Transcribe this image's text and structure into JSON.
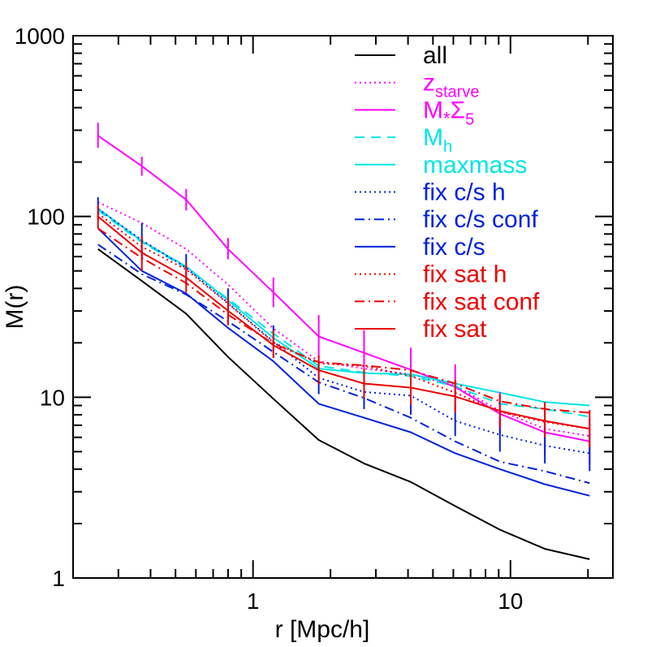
{
  "chart_data": {
    "type": "line",
    "xlabel": "r [Mpc/h]",
    "ylabel": "M(r)",
    "xscale": "log",
    "yscale": "log",
    "xlim": [
      0.2,
      25
    ],
    "ylim": [
      1,
      1000
    ],
    "x_ticks": [
      1,
      10
    ],
    "y_ticks": [
      1,
      10,
      100,
      1000
    ],
    "x": [
      0.25,
      0.37,
      0.55,
      0.8,
      1.2,
      1.8,
      2.7,
      4.1,
      6.1,
      9.1,
      13.6,
      20.3
    ],
    "legend_position": "top-right",
    "series": [
      {
        "name": "all",
        "color": "#000000",
        "dash": "solid",
        "values": [
          66,
          44,
          29,
          16.7,
          9.8,
          5.8,
          4.3,
          3.4,
          2.5,
          1.85,
          1.45,
          1.27
        ]
      },
      {
        "name": "z_starve",
        "label_main": "z",
        "label_sub": "starve",
        "color": "#ff00ff",
        "dash": "dot",
        "values": [
          120,
          92,
          66,
          42,
          24,
          15.8,
          14.4,
          13.4,
          11.6,
          8.4,
          6.7,
          6.1
        ]
      },
      {
        "name": "M*Σ5",
        "label_main": "M",
        "label_star": "*",
        "label_sigma": "Σ",
        "label_sub": "5",
        "color": "#ff00ff",
        "dash": "solid",
        "values": [
          280,
          190,
          124,
          66,
          38,
          21.7,
          17.6,
          14.2,
          11.4,
          8.1,
          6.4,
          5.7
        ]
      },
      {
        "name": "Ṁh",
        "label_main": "M",
        "label_sub": "h",
        "color": "#00e5e5",
        "dash": "dash",
        "values": [
          108,
          72,
          52,
          35,
          22.5,
          14.9,
          13.7,
          13.1,
          11.5,
          9.2,
          8.6,
          7.8
        ]
      },
      {
        "name": "maxmass",
        "color": "#00e5e5",
        "dash": "solid",
        "values": [
          111,
          73,
          53,
          34.3,
          21.3,
          14.4,
          13.6,
          13.4,
          11.9,
          10.6,
          9.4,
          9.0
        ]
      },
      {
        "name": "fix c/s h",
        "color": "#0022dd",
        "dash": "dot",
        "values": [
          110,
          74,
          52,
          33.2,
          20.3,
          12.8,
          10.7,
          10.2,
          7.4,
          6.2,
          5.4,
          4.9
        ]
      },
      {
        "name": "fix c/s conf",
        "color": "#0022dd",
        "dash": "dashdot",
        "values": [
          70,
          48,
          37,
          26.3,
          17.8,
          12.1,
          9.9,
          7.7,
          5.7,
          4.4,
          3.9,
          3.35
        ]
      },
      {
        "name": "fix c/s",
        "color": "#0022dd",
        "dash": "solid",
        "values": [
          86,
          50,
          37.5,
          24.2,
          15.8,
          9.2,
          7.7,
          6.4,
          4.9,
          4.0,
          3.3,
          2.85
        ]
      },
      {
        "name": "fix sat h",
        "color": "#ee0000",
        "dash": "dot",
        "values": [
          104,
          68,
          51,
          33,
          20.1,
          15.4,
          14.9,
          13.1,
          10.6,
          8.3,
          7.3,
          6.7
        ]
      },
      {
        "name": "fix sat conf",
        "color": "#ee0000",
        "dash": "dashdot",
        "values": [
          86,
          59,
          42.8,
          28.6,
          19.8,
          15.6,
          15.0,
          14.1,
          11.9,
          9.5,
          8.6,
          8.2
        ]
      },
      {
        "name": "fix sat",
        "color": "#ee0000",
        "dash": "solid",
        "values": [
          100,
          63,
          46,
          30.1,
          19.4,
          14.1,
          11.9,
          11.3,
          10.1,
          8.4,
          7.4,
          6.7
        ]
      }
    ],
    "error_bars": [
      {
        "series": "M*Σ5",
        "color": "#ff00ff",
        "points": [
          [
            0.25,
            240,
            330
          ],
          [
            0.37,
            168,
            214
          ],
          [
            0.55,
            108,
            142
          ],
          [
            0.8,
            58,
            76
          ],
          [
            1.2,
            31.5,
            46
          ],
          [
            1.8,
            16.5,
            28.5
          ],
          [
            2.7,
            13.2,
            23.5
          ],
          [
            4.1,
            10.8,
            18.8
          ],
          [
            6.1,
            8.6,
            15.2
          ],
          [
            9.1,
            6.3,
            10.7
          ],
          [
            13.6,
            4.8,
            8.6
          ],
          [
            20.3,
            4.3,
            7.6
          ]
        ]
      },
      {
        "series": "fix c/s h",
        "color": "#0022dd",
        "points": [
          [
            0.25,
            96,
            128
          ],
          [
            0.37,
            57,
            92
          ],
          [
            0.55,
            42,
            62
          ],
          [
            0.8,
            27.5,
            40
          ],
          [
            1.2,
            16.5,
            25
          ],
          [
            1.8,
            10.4,
            15.8
          ],
          [
            2.7,
            8.6,
            13.4
          ],
          [
            4.1,
            8.0,
            13.2
          ],
          [
            6.1,
            6.1,
            9.1
          ],
          [
            9.1,
            5.0,
            7.7
          ],
          [
            13.6,
            4.3,
            6.8
          ],
          [
            20.3,
            3.9,
            6.2
          ]
        ]
      },
      {
        "series": "fix sat",
        "color": "#ee0000",
        "points": [
          [
            0.25,
            86,
            116
          ],
          [
            0.37,
            50,
            78
          ],
          [
            0.55,
            38,
            55
          ],
          [
            0.8,
            25,
            36
          ],
          [
            1.2,
            16.5,
            23.5
          ],
          [
            1.8,
            11.8,
            17
          ],
          [
            2.7,
            9.9,
            14.4
          ],
          [
            4.1,
            9.1,
            14.3
          ],
          [
            6.1,
            8.2,
            12.5
          ],
          [
            9.1,
            6.8,
            10.4
          ],
          [
            13.6,
            6.0,
            9.4
          ],
          [
            20.3,
            5.3,
            8.5
          ]
        ]
      }
    ]
  }
}
